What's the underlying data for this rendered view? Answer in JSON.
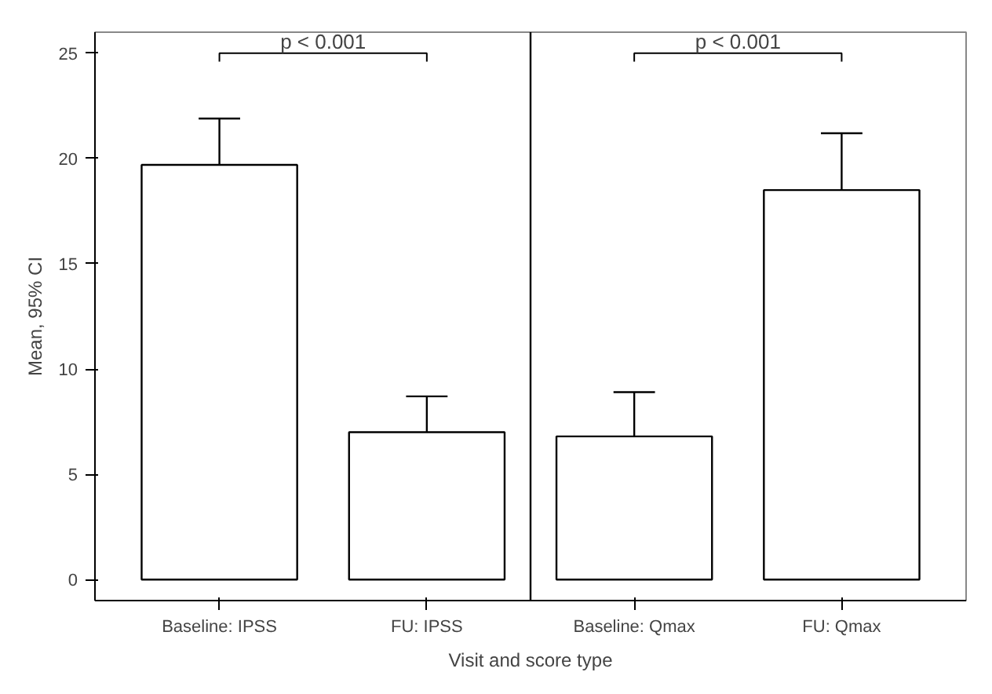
{
  "chart_data": {
    "type": "bar",
    "xlabel": "Visit and score type",
    "ylabel": "Mean, 95% CI",
    "categories": [
      "Baseline: IPSS",
      "FU: IPSS",
      "Baseline: Qmax",
      "FU: Qmax"
    ],
    "values": [
      19.7,
      7.0,
      6.8,
      18.5
    ],
    "errors": [
      [
        19.7,
        21.9
      ],
      [
        7.0,
        8.7
      ],
      [
        6.8,
        8.9
      ],
      [
        18.5,
        21.2
      ]
    ],
    "color": "#ffffff",
    "ylim": [
      -1,
      26
    ],
    "yticks": [
      0,
      5,
      10,
      15,
      20,
      25
    ],
    "grid": false,
    "annotations": [
      "p < 0.001",
      "p < 0.001"
    ]
  }
}
